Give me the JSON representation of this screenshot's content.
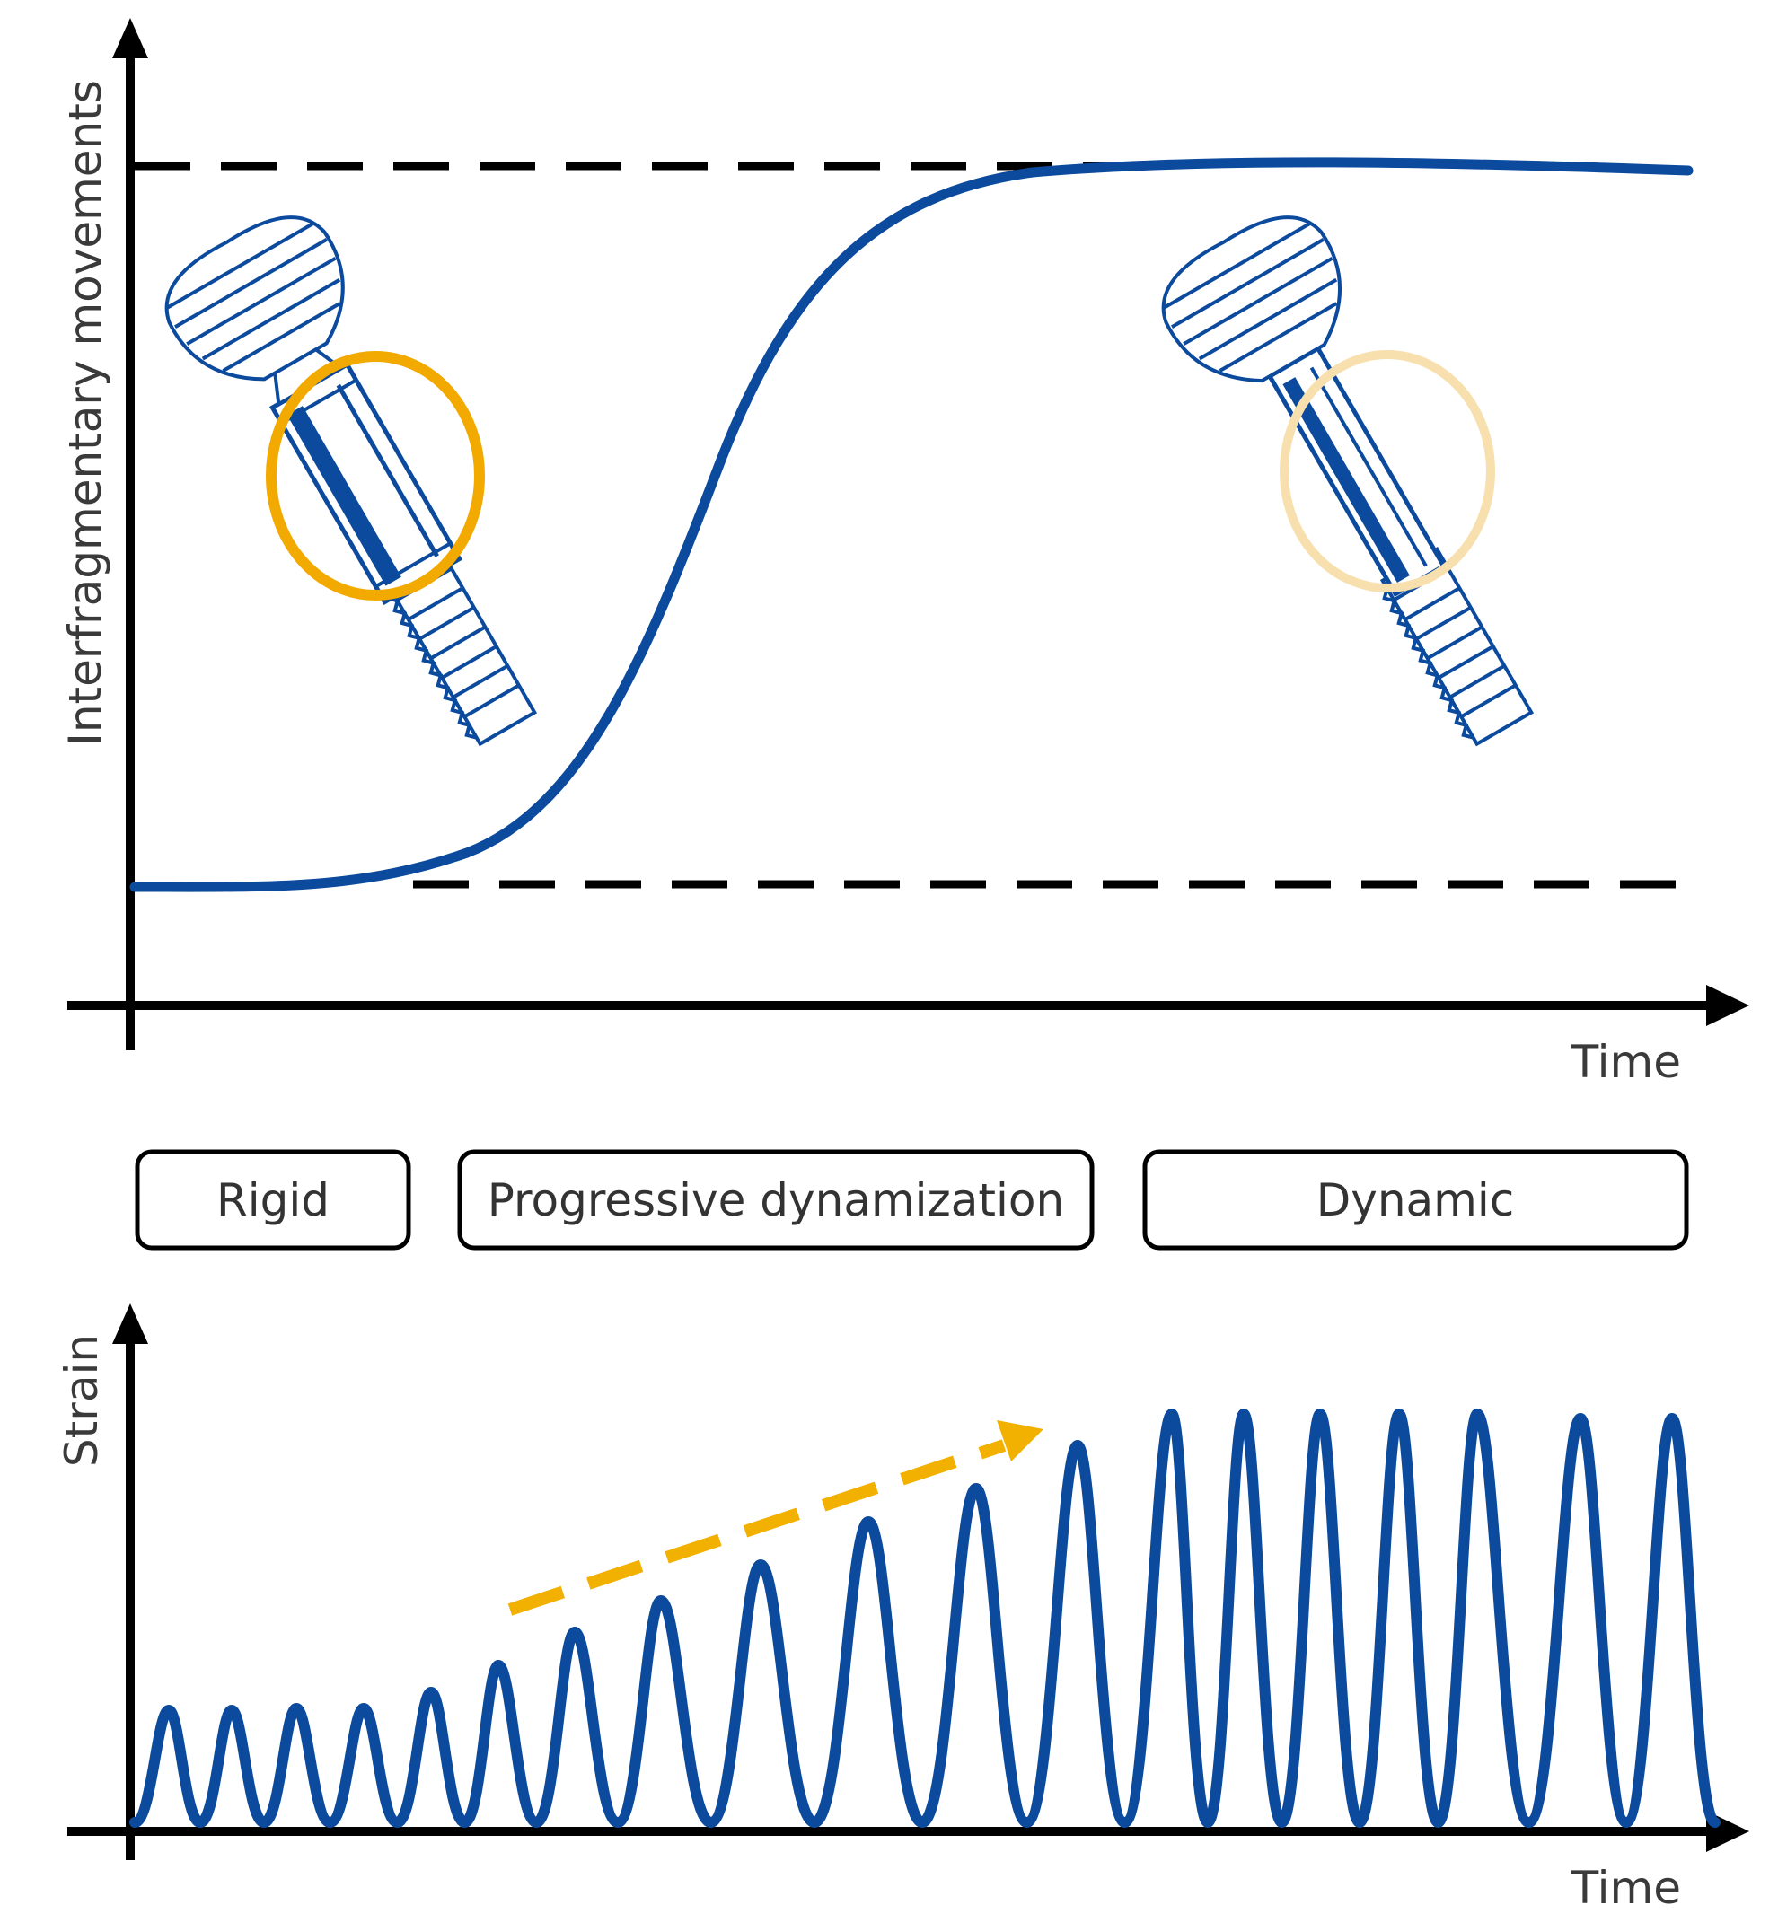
{
  "colors": {
    "curve": "#0b4a9c",
    "axis": "#000000",
    "highlight": "#f2a900",
    "highlight_faded": "#f7dfae",
    "arrow": "#f2b100",
    "label_text": "#3a3a3a"
  },
  "top_chart": {
    "y_axis_label": "Interfragmentary movements",
    "x_axis_label": "Time",
    "curve_shape": "sigmoid",
    "reference_lines": [
      "upper-dashed",
      "lower-dashed"
    ]
  },
  "phases": [
    {
      "label": "Rigid"
    },
    {
      "label": "Progressive dynamization"
    },
    {
      "label": "Dynamic"
    }
  ],
  "bottom_chart": {
    "y_axis_label": "Strain",
    "x_axis_label": "Time",
    "curve_shape": "oscillation",
    "trend_arrow": "increasing"
  },
  "illustrations": {
    "left": "rigid-screw-icon",
    "right": "dynamic-screw-icon"
  }
}
